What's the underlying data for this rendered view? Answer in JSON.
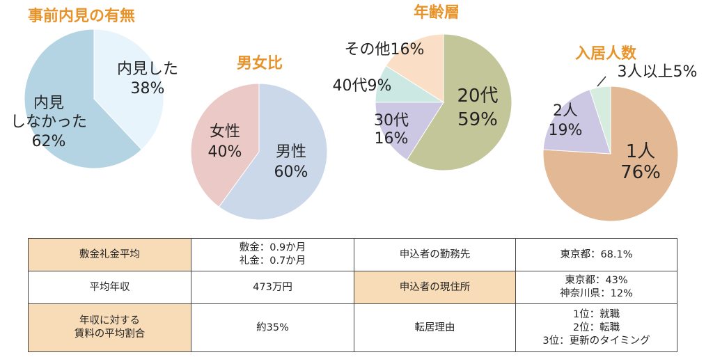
{
  "chart_data": [
    {
      "type": "pie",
      "title": "事前内見の有無",
      "slices": [
        {
          "label": "内見した",
          "value": 38,
          "value_text": "38%",
          "color": "#e8f4fb"
        },
        {
          "label": "内見\nしなかった",
          "value": 62,
          "value_text": "62%",
          "color": "#b4d3e3"
        }
      ]
    },
    {
      "type": "pie",
      "title": "男女比",
      "slices": [
        {
          "label": "男性",
          "value": 60,
          "value_text": "60%",
          "color": "#cad8ea"
        },
        {
          "label": "女性",
          "value": 40,
          "value_text": "40%",
          "color": "#ebc9c6"
        }
      ]
    },
    {
      "type": "pie",
      "title": "年齢層",
      "slices": [
        {
          "label": "20代",
          "value": 59,
          "value_text": "59%",
          "color": "#c3c699"
        },
        {
          "label": "30代",
          "value": 16,
          "value_text": "16%",
          "color": "#ccc7e2"
        },
        {
          "label": "40代",
          "value": 9,
          "value_text": "9%",
          "color": "#cce8e2"
        },
        {
          "label": "その他",
          "value": 16,
          "value_text": "16%",
          "color": "#fadfc6"
        }
      ]
    },
    {
      "type": "pie",
      "title": "入居人数",
      "slices": [
        {
          "label": "1人",
          "value": 76,
          "value_text": "76%",
          "color": "#e3b895"
        },
        {
          "label": "2人",
          "value": 19,
          "value_text": "19%",
          "color": "#ccc7e2"
        },
        {
          "label": "3人以上",
          "value": 5,
          "value_text": "5%",
          "color": "#d6ecdf"
        }
      ]
    }
  ],
  "info_table": {
    "rows": [
      [
        {
          "text": "敷金礼金平均",
          "header": true
        },
        {
          "text": "敷金：0.9か月\n礼金：0.7か月",
          "header": false
        },
        {
          "text": "申込者の勤務先",
          "header": false
        },
        {
          "text": "東京都：68.1%",
          "header": false
        }
      ],
      [
        {
          "text": "平均年収",
          "header": false
        },
        {
          "text": "473万円",
          "header": false
        },
        {
          "text": "申込者の現住所",
          "header": true
        },
        {
          "text": "東京都：43%\n神奈川県：12%",
          "header": false
        }
      ],
      [
        {
          "text": "年収に対する\n賃料の平均割合",
          "header": true
        },
        {
          "text": "約35%",
          "header": false
        },
        {
          "text": "転居理由",
          "header": false
        },
        {
          "text": "1位：就職\n2位：転職\n3位：更新のタイミング",
          "header": false
        }
      ]
    ]
  }
}
